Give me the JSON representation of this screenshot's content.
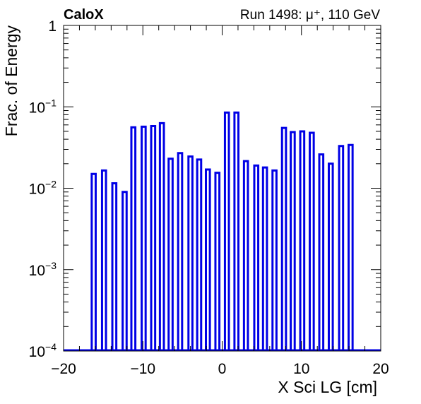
{
  "header": {
    "brand": "CaloX",
    "run_label": "Run 1498:   μ⁺, 110 GeV"
  },
  "chart_data": {
    "type": "bar",
    "title": "",
    "xlabel": "X Sci LG [cm]",
    "ylabel": "Frac. of Energy",
    "xlim": [
      -20,
      20
    ],
    "ylim": [
      0.0001,
      1
    ],
    "yscale": "log",
    "grid": false,
    "legend": "none",
    "color": "#0000e6",
    "x_ticks": [
      {
        "value": -20,
        "label": "−20"
      },
      {
        "value": -10,
        "label": "−10"
      },
      {
        "value": 0,
        "label": "0"
      },
      {
        "value": 10,
        "label": "10"
      },
      {
        "value": 20,
        "label": "20"
      }
    ],
    "y_ticks": [
      {
        "value": 1,
        "base": "1",
        "exp": ""
      },
      {
        "value": 0.1,
        "base": "10",
        "exp": "−1"
      },
      {
        "value": 0.01,
        "base": "10",
        "exp": "−2"
      },
      {
        "value": 0.001,
        "base": "10",
        "exp": "−3"
      },
      {
        "value": 0.0001,
        "base": "10",
        "exp": "−4"
      }
    ],
    "bin_width": 0.5,
    "x": [
      -16.2,
      -14.9,
      -13.6,
      -12.3,
      -11.2,
      -9.9,
      -8.7,
      -7.6,
      -6.5,
      -5.3,
      -4.0,
      -2.9,
      -1.8,
      -0.6,
      0.6,
      1.8,
      3.0,
      4.3,
      5.4,
      6.6,
      7.8,
      8.9,
      10.1,
      11.3,
      12.5,
      13.7,
      15.0,
      16.2
    ],
    "values": [
      0.015,
      0.0165,
      0.0115,
      0.009,
      0.056,
      0.057,
      0.058,
      0.063,
      0.023,
      0.027,
      0.0245,
      0.0225,
      0.017,
      0.0155,
      0.085,
      0.085,
      0.0215,
      0.019,
      0.018,
      0.0165,
      0.055,
      0.049,
      0.05,
      0.048,
      0.026,
      0.02,
      0.033,
      0.034
    ]
  }
}
